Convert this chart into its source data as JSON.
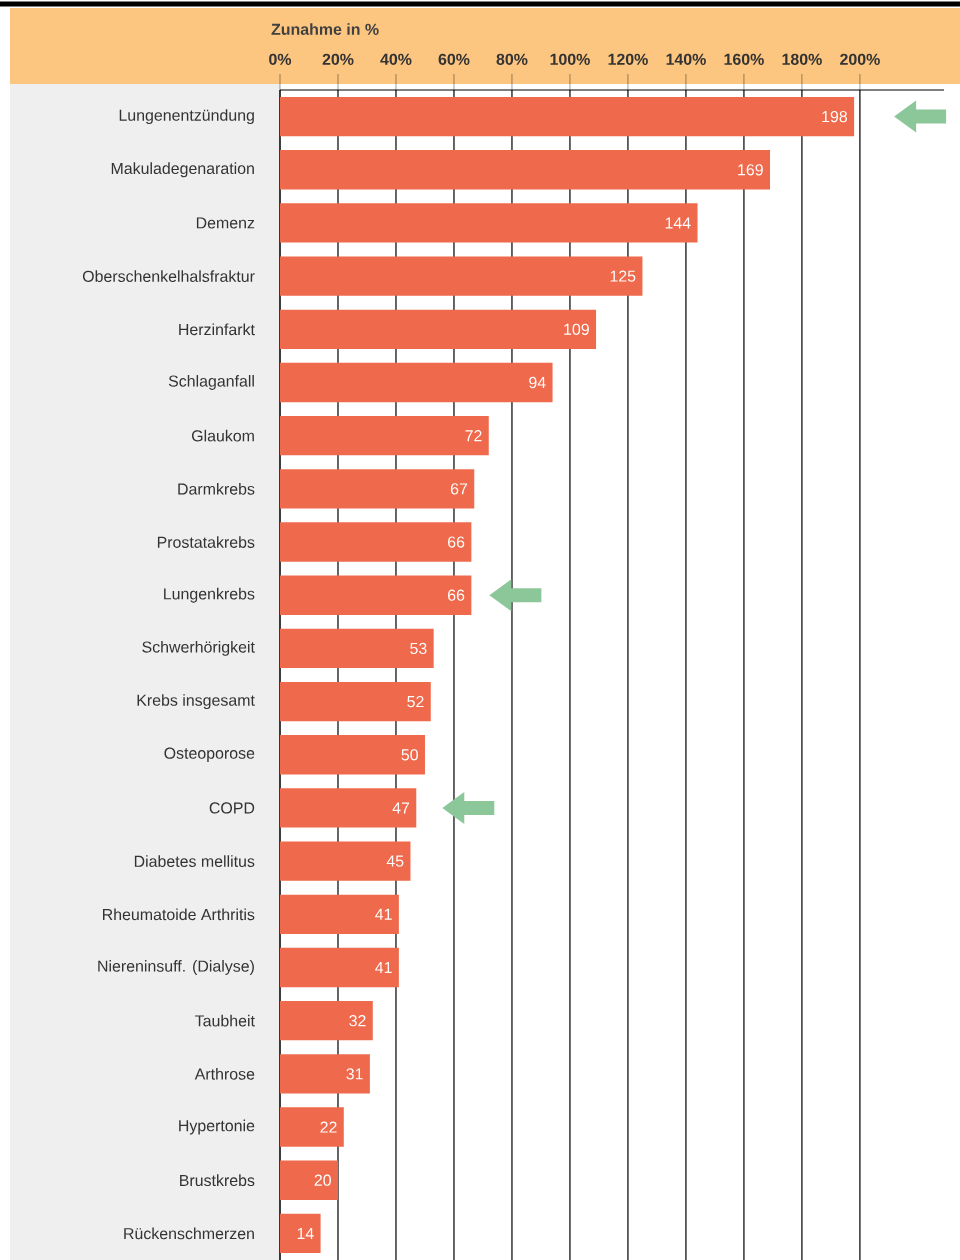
{
  "chart_data": {
    "type": "bar",
    "orientation": "horizontal",
    "xlabel": "Zunahme in %",
    "categories": [
      "Lungenentzündung",
      "Makuladegenaration",
      "Demenz",
      "Oberschenkelhalsfraktur",
      "Herzinfarkt",
      "Schlaganfall",
      "Glaukom",
      "Darmkrebs",
      "Prostatakrebs",
      "Lungenkrebs",
      "Schwerhörigkeit",
      "Krebs insgesamt",
      "Osteoporose",
      "COPD",
      "Diabetes mellitus",
      "Rheumatoide Arthritis",
      "Niereninsuff. (Dialyse)",
      "Taubheit",
      "Arthrose",
      "Hypertonie",
      "Brustkrebs",
      "Rückenschmerzen"
    ],
    "values": [
      198,
      169,
      144,
      125,
      109,
      94,
      72,
      67,
      66,
      66,
      53,
      52,
      50,
      47,
      45,
      41,
      41,
      32,
      31,
      22,
      20,
      14
    ],
    "color": "#ef6a4c",
    "xlim": [
      0,
      229
    ],
    "xticks": [
      {
        "value": 0,
        "label": "0%"
      },
      {
        "value": 20,
        "label": "20%"
      },
      {
        "value": 40,
        "label": "40%"
      },
      {
        "value": 60,
        "label": "60%"
      },
      {
        "value": 80,
        "label": "80%"
      },
      {
        "value": 100,
        "label": "100%"
      },
      {
        "value": 120,
        "label": "120%"
      },
      {
        "value": 140,
        "label": "140%"
      },
      {
        "value": 160,
        "label": "160%"
      },
      {
        "value": 180,
        "label": "180%"
      },
      {
        "value": 200,
        "label": "200%"
      }
    ],
    "grid": "x",
    "data_labels": true
  }
}
